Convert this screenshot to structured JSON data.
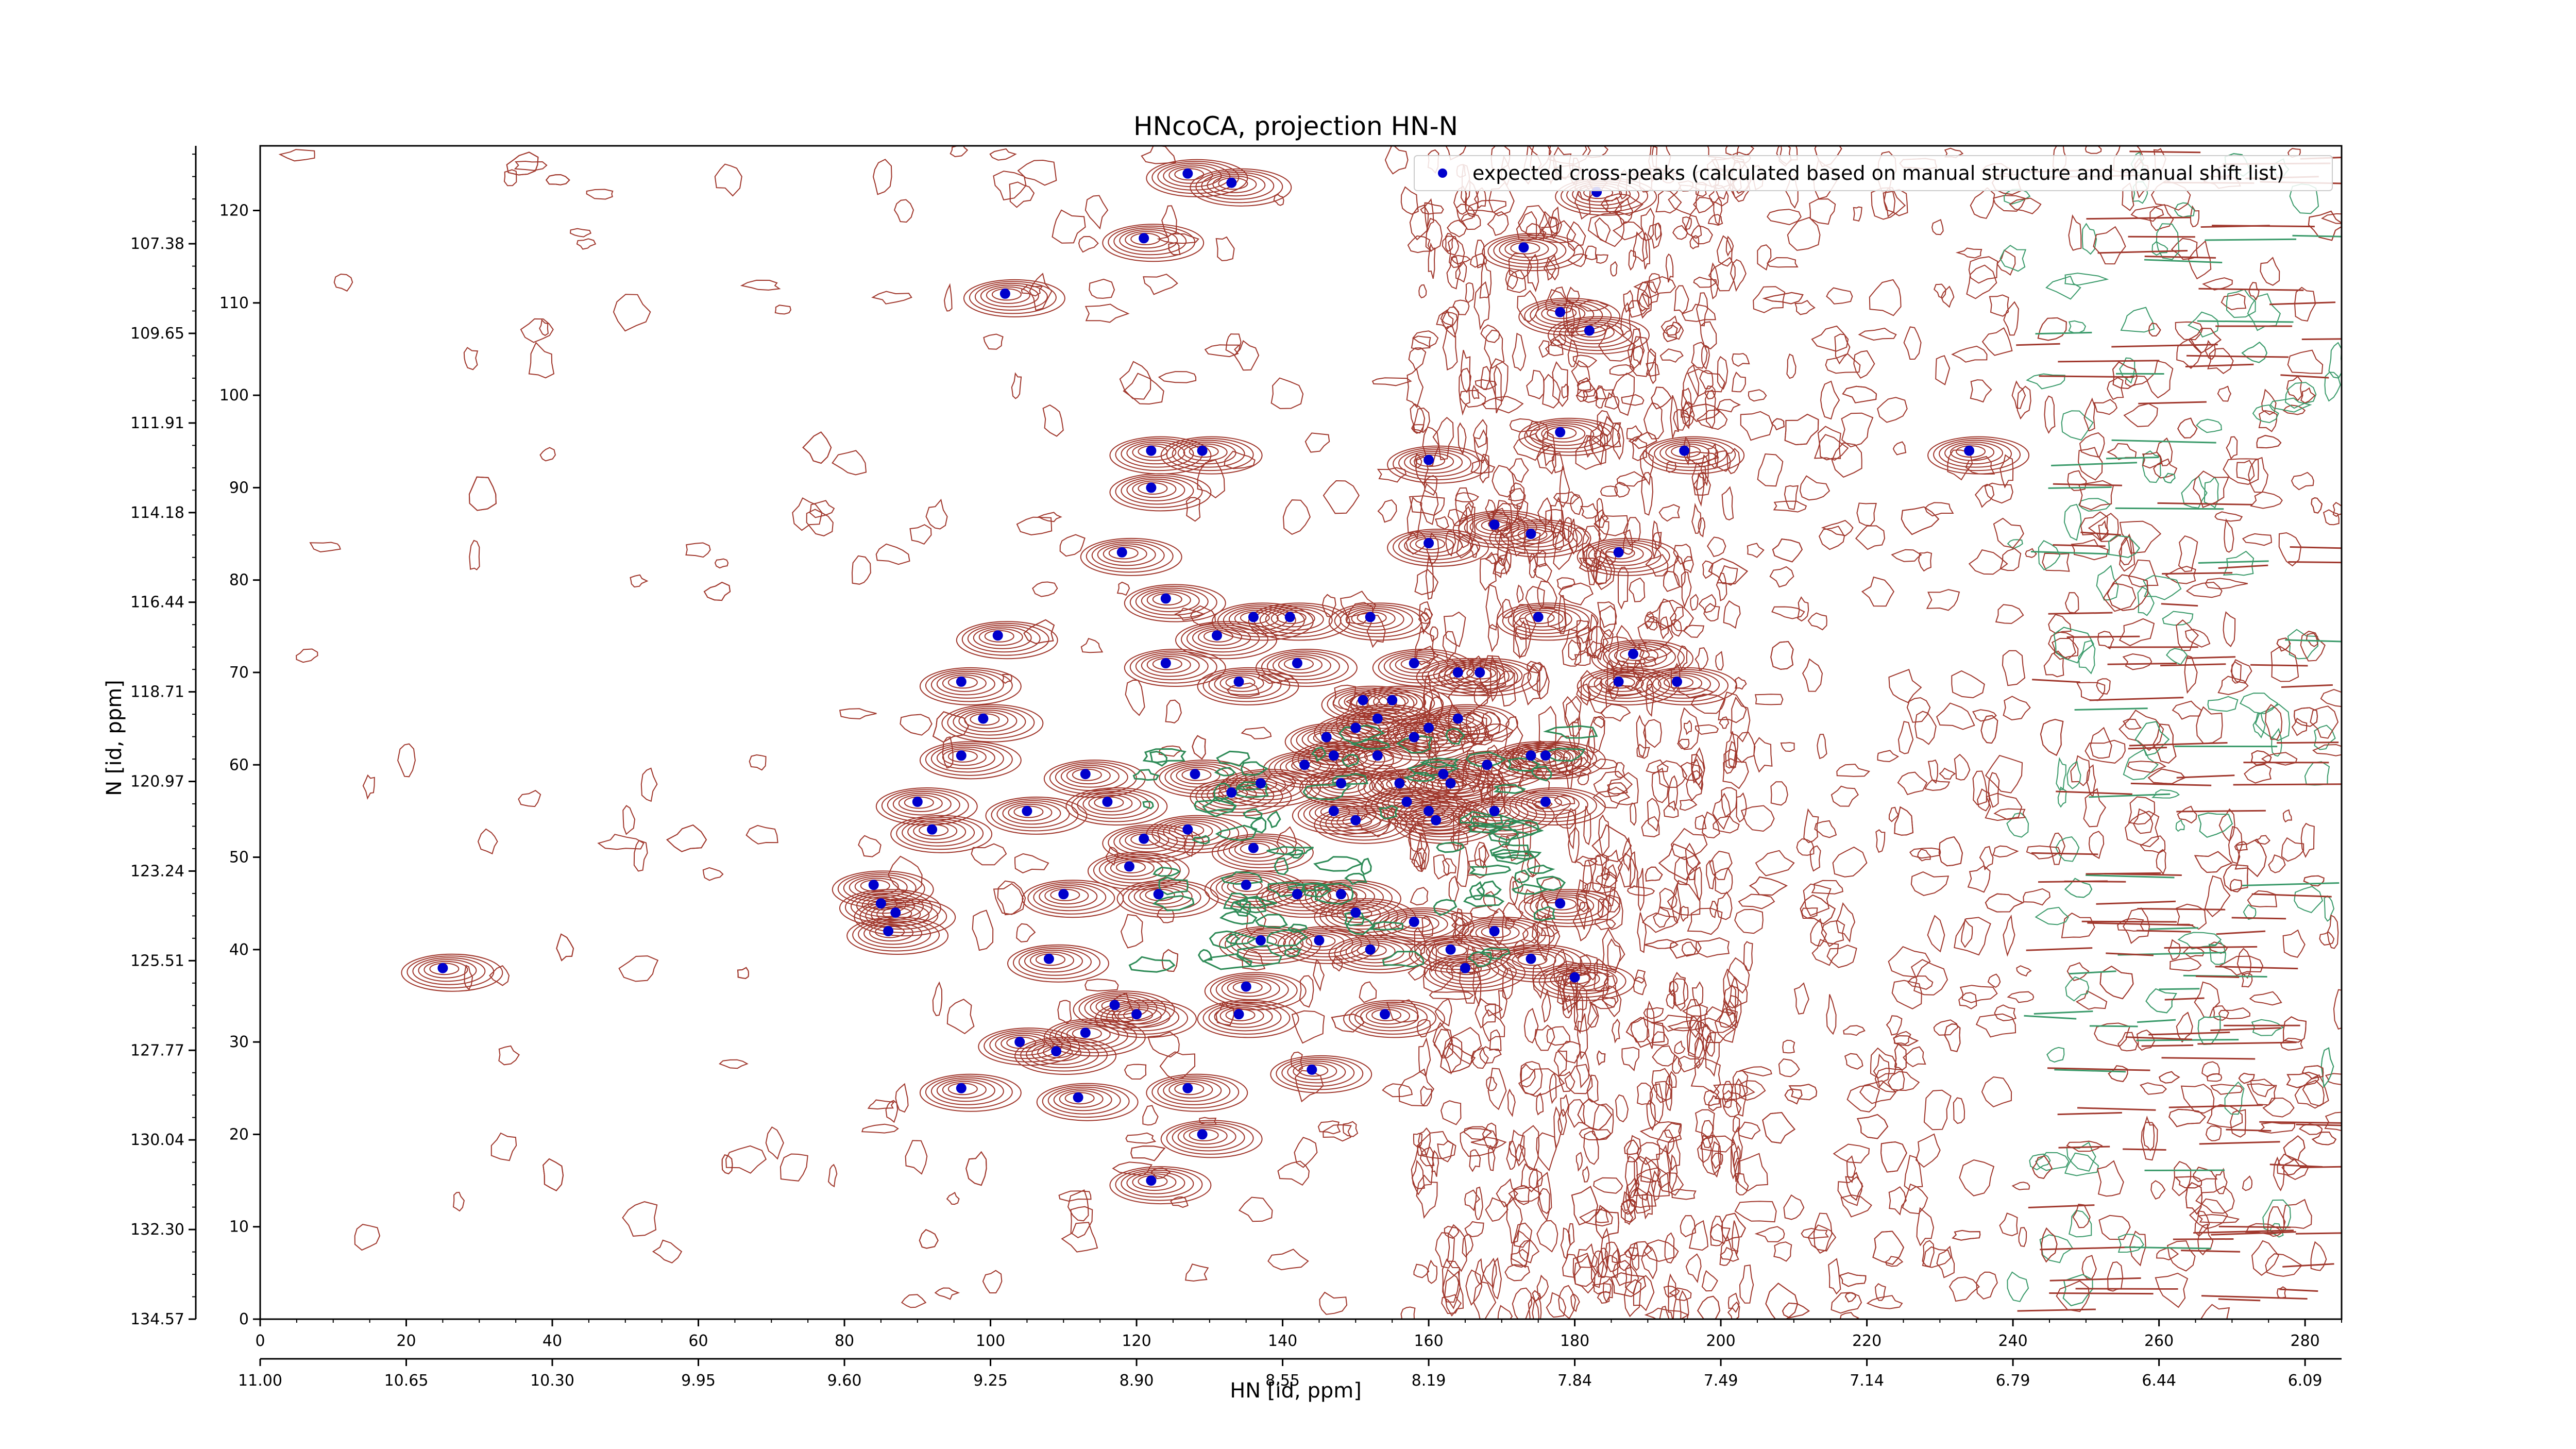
{
  "chart_data": {
    "type": "scatter",
    "title": "HNcoCA, projection HN-N",
    "xlabel": "HN [id, ppm]",
    "ylabel": "N [id, ppm]",
    "x_index_range": [
      0,
      285
    ],
    "y_index_range": [
      0,
      127
    ],
    "x_index_ticks": [
      0,
      20,
      40,
      60,
      80,
      100,
      120,
      140,
      160,
      180,
      200,
      220,
      240,
      260,
      280
    ],
    "y_index_ticks": [
      0,
      10,
      20,
      30,
      40,
      50,
      60,
      70,
      80,
      90,
      100,
      110,
      120
    ],
    "x_ppm_range": [
      11.0,
      6.0
    ],
    "x_ppm_ticks": [
      "11.00",
      "10.65",
      "10.30",
      "9.95",
      "9.60",
      "9.25",
      "8.90",
      "8.55",
      "8.19",
      "7.84",
      "7.49",
      "7.14",
      "6.79",
      "6.44",
      "6.09"
    ],
    "y_ppm_range": [
      134.57,
      106.2
    ],
    "y_ppm_ticks": [
      "134.57",
      "132.30",
      "130.04",
      "127.77",
      "125.51",
      "123.24",
      "120.97",
      "118.71",
      "116.44",
      "114.18",
      "111.91",
      "109.65",
      "107.38"
    ],
    "legend_position": "top-right",
    "series": [
      {
        "name": "expected cross-peaks (calculated based on manual structure and manual shift list)",
        "color": "#0000cc",
        "points": [
          [
            127,
            124
          ],
          [
            133,
            123
          ],
          [
            121,
            117
          ],
          [
            183,
            122
          ],
          [
            173,
            116
          ],
          [
            102,
            111
          ],
          [
            178,
            109
          ],
          [
            182,
            107
          ],
          [
            122,
            94
          ],
          [
            129,
            94
          ],
          [
            122,
            90
          ],
          [
            178,
            96
          ],
          [
            160,
            93
          ],
          [
            195,
            94
          ],
          [
            234,
            94
          ],
          [
            118,
            83
          ],
          [
            160,
            84
          ],
          [
            169,
            86
          ],
          [
            174,
            85
          ],
          [
            186,
            83
          ],
          [
            124,
            78
          ],
          [
            136,
            76
          ],
          [
            141,
            76
          ],
          [
            152,
            76
          ],
          [
            175,
            76
          ],
          [
            101,
            74
          ],
          [
            131,
            74
          ],
          [
            124,
            71
          ],
          [
            142,
            71
          ],
          [
            158,
            71
          ],
          [
            164,
            70
          ],
          [
            167,
            70
          ],
          [
            96,
            69
          ],
          [
            134,
            69
          ],
          [
            186,
            69
          ],
          [
            188,
            72
          ],
          [
            194,
            69
          ],
          [
            99,
            65
          ],
          [
            146,
            63
          ],
          [
            150,
            64
          ],
          [
            151,
            67
          ],
          [
            153,
            65
          ],
          [
            155,
            67
          ],
          [
            158,
            63
          ],
          [
            160,
            64
          ],
          [
            164,
            65
          ],
          [
            96,
            61
          ],
          [
            143,
            60
          ],
          [
            147,
            61
          ],
          [
            153,
            61
          ],
          [
            156,
            58
          ],
          [
            162,
            59
          ],
          [
            163,
            58
          ],
          [
            174,
            61
          ],
          [
            176,
            61
          ],
          [
            168,
            60
          ],
          [
            113,
            59
          ],
          [
            128,
            59
          ],
          [
            137,
            58
          ],
          [
            148,
            58
          ],
          [
            157,
            56
          ],
          [
            160,
            55
          ],
          [
            169,
            55
          ],
          [
            176,
            56
          ],
          [
            90,
            56
          ],
          [
            105,
            55
          ],
          [
            116,
            56
          ],
          [
            133,
            57
          ],
          [
            147,
            55
          ],
          [
            150,
            54
          ],
          [
            161,
            54
          ],
          [
            92,
            53
          ],
          [
            121,
            52
          ],
          [
            127,
            53
          ],
          [
            136,
            51
          ],
          [
            119,
            49
          ],
          [
            84,
            47
          ],
          [
            85,
            45
          ],
          [
            87,
            44
          ],
          [
            86,
            42
          ],
          [
            110,
            46
          ],
          [
            123,
            46
          ],
          [
            135,
            47
          ],
          [
            142,
            46
          ],
          [
            148,
            46
          ],
          [
            178,
            45
          ],
          [
            150,
            44
          ],
          [
            158,
            43
          ],
          [
            163,
            40
          ],
          [
            137,
            41
          ],
          [
            145,
            41
          ],
          [
            152,
            40
          ],
          [
            169,
            42
          ],
          [
            174,
            39
          ],
          [
            25,
            38
          ],
          [
            108,
            39
          ],
          [
            135,
            36
          ],
          [
            154,
            33
          ],
          [
            165,
            38
          ],
          [
            180,
            37
          ],
          [
            117,
            34
          ],
          [
            120,
            33
          ],
          [
            134,
            33
          ],
          [
            113,
            31
          ],
          [
            104,
            30
          ],
          [
            109,
            29
          ],
          [
            96,
            25
          ],
          [
            112,
            24
          ],
          [
            127,
            25
          ],
          [
            144,
            27
          ],
          [
            129,
            20
          ],
          [
            122,
            15
          ]
        ]
      }
    ]
  }
}
